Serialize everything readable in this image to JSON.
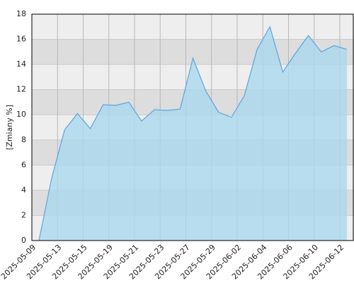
{
  "chart_data": {
    "type": "area",
    "y_label": "[Zmiany %]",
    "categories": [
      "2025-05-09",
      null,
      "2025-05-13",
      null,
      "2025-05-15",
      null,
      "2025-05-19",
      null,
      "2025-05-21",
      null,
      "2025-05-23",
      null,
      "2025-05-27",
      null,
      "2025-05-29",
      null,
      "2025-06-02",
      null,
      "2025-06-04",
      null,
      "2025-06-06",
      null,
      "2025-06-10",
      null,
      "2025-06-12"
    ],
    "values": [
      0,
      5,
      8.8,
      10.1,
      8.9,
      10.8,
      10.75,
      11,
      9.5,
      10.4,
      10.35,
      10.45,
      14.5,
      11.9,
      10.2,
      9.8,
      11.5,
      15.2,
      17,
      13.4,
      14.9,
      16.3,
      15,
      15.5,
      15.2
    ],
    "color": "#5aa6e0",
    "fill": "#a9d8ee",
    "ylim": [
      0,
      18
    ],
    "yticks": [
      0,
      2,
      4,
      6,
      8,
      10,
      12,
      14,
      16,
      18
    ],
    "grid": true
  }
}
